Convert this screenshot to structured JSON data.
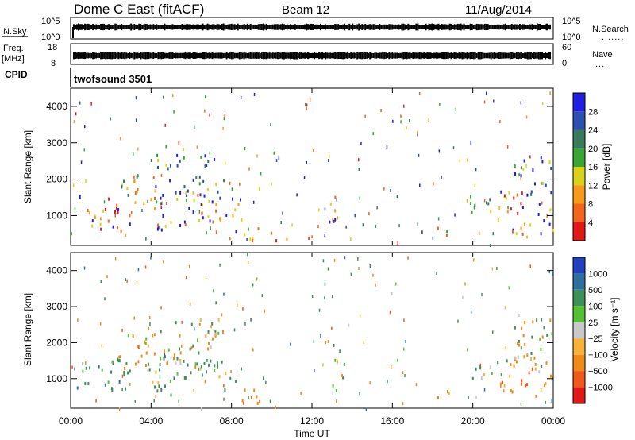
{
  "header": {
    "radar": "Dome C East (fitACF)",
    "beam": "Beam 12",
    "date": "11/Aug/2014"
  },
  "status_panels": {
    "nsky": {
      "label": "N.Sky",
      "ticks": [
        "10^5",
        "10^0"
      ]
    },
    "nsearch": {
      "label": "N.Search",
      "ticks": [
        "10^5",
        "10^0"
      ]
    },
    "freq": {
      "label_1": "Freq.",
      "label_2": "[MHz]",
      "ticks": [
        "18",
        "8"
      ]
    },
    "nave": {
      "label": "Nave",
      "ticks": [
        "60",
        "0"
      ]
    },
    "cpid": {
      "label": "CPID",
      "program": "twofsound 3501"
    }
  },
  "chart_data": [
    {
      "type": "heatmap",
      "name": "power",
      "ylabel": "Slant Range [km]",
      "xlabel": "Time UT",
      "x_ticks": [
        "00:00",
        "04:00",
        "08:00",
        "12:00",
        "16:00",
        "20:00",
        "00:00"
      ],
      "y_ticks": [
        1000,
        2000,
        3000,
        4000
      ],
      "xlim_hours": [
        0,
        24
      ],
      "ylim_km": [
        180,
        4500
      ],
      "colorbar": {
        "label": "Power [dB]",
        "ticks": [
          "28",
          "24",
          "20",
          "16",
          "12",
          "8",
          "4"
        ],
        "levels": [
          {
            "min": 0,
            "max": 4,
            "color": "#1f1fe0"
          },
          {
            "min": 4,
            "max": 8,
            "color": "#2c4fb0"
          },
          {
            "min": 8,
            "max": 12,
            "color": "#3a7a5c"
          },
          {
            "min": 12,
            "max": 16,
            "color": "#39a534"
          },
          {
            "min": 16,
            "max": 20,
            "color": "#d8d21a"
          },
          {
            "min": 20,
            "max": 24,
            "color": "#f59a1c"
          },
          {
            "min": 24,
            "max": 28,
            "color": "#f2661c"
          },
          {
            "min": 28,
            "max": 32,
            "color": "#e01818"
          }
        ]
      },
      "scatter_regions": [
        {
          "t0": 0.3,
          "t1": 3.0,
          "r0": 600,
          "r1": 1650,
          "val": 26
        },
        {
          "t0": 2.4,
          "t1": 4.4,
          "r0": 1300,
          "r1": 2300,
          "val": 18
        },
        {
          "t0": 3.8,
          "t1": 8.6,
          "r0": 550,
          "r1": 1600,
          "val": 27
        },
        {
          "t0": 4.2,
          "t1": 7.6,
          "r0": 1300,
          "r1": 2700,
          "val": 10
        },
        {
          "t0": 8.5,
          "t1": 10.8,
          "r0": 350,
          "r1": 750,
          "val": 24
        },
        {
          "t0": 12.8,
          "t1": 13.6,
          "r0": 650,
          "r1": 1850,
          "val": 26
        },
        {
          "t0": 18.0,
          "t1": 18.9,
          "r0": 350,
          "r1": 750,
          "val": 17
        },
        {
          "t0": 19.5,
          "t1": 21.8,
          "r0": 1000,
          "r1": 1600,
          "val": 18
        },
        {
          "t0": 21.2,
          "t1": 24.0,
          "r0": 500,
          "r1": 1700,
          "val": 27
        },
        {
          "t0": 22.0,
          "t1": 24.0,
          "r0": 1500,
          "r1": 2700,
          "val": 10
        }
      ]
    },
    {
      "type": "heatmap",
      "name": "velocity",
      "ylabel": "Slant Range [km]",
      "xlabel": "Time UT",
      "x_ticks": [
        "00:00",
        "04:00",
        "08:00",
        "12:00",
        "16:00",
        "20:00",
        "00:00"
      ],
      "y_ticks": [
        1000,
        2000,
        3000,
        4000
      ],
      "xlim_hours": [
        0,
        24
      ],
      "ylim_km": [
        180,
        4500
      ],
      "colorbar": {
        "label": "Velocity [m s⁻¹]",
        "ticks": [
          "1000",
          "500",
          "100",
          "25",
          "−25",
          "−100",
          "−500",
          "−1000"
        ],
        "levels": [
          {
            "min": 1000,
            "max": 1500,
            "color": "#2040c0"
          },
          {
            "min": 500,
            "max": 1000,
            "color": "#2f6fa0"
          },
          {
            "min": 100,
            "max": 500,
            "color": "#3f8f5a"
          },
          {
            "min": 25,
            "max": 100,
            "color": "#55c030"
          },
          {
            "min": -25,
            "max": 25,
            "color": "#c8c8c8"
          },
          {
            "min": -100,
            "max": -25,
            "color": "#f6b23a"
          },
          {
            "min": -500,
            "max": -100,
            "color": "#f28a1a"
          },
          {
            "min": -1000,
            "max": -500,
            "color": "#ee5a1a"
          },
          {
            "min": -1500,
            "max": -1000,
            "color": "#e01818"
          }
        ]
      },
      "scatter_regions": [
        {
          "t0": 0.3,
          "t1": 3.0,
          "r0": 600,
          "r1": 1650,
          "val": 300
        },
        {
          "t0": 2.4,
          "t1": 4.4,
          "r0": 1300,
          "r1": 2300,
          "val": -200
        },
        {
          "t0": 3.8,
          "t1": 8.6,
          "r0": 550,
          "r1": 1600,
          "val": 200
        },
        {
          "t0": 4.2,
          "t1": 7.6,
          "r0": 1300,
          "r1": 2700,
          "val": 0
        },
        {
          "t0": 8.5,
          "t1": 10.8,
          "r0": 350,
          "r1": 750,
          "val": -300
        },
        {
          "t0": 12.8,
          "t1": 13.6,
          "r0": 650,
          "r1": 1850,
          "val": 150
        },
        {
          "t0": 18.0,
          "t1": 18.9,
          "r0": 350,
          "r1": 750,
          "val": -300
        },
        {
          "t0": 19.5,
          "t1": 21.8,
          "r0": 1000,
          "r1": 1600,
          "val": 200
        },
        {
          "t0": 21.2,
          "t1": 24.0,
          "r0": 500,
          "r1": 1700,
          "val": -300
        },
        {
          "t0": 22.0,
          "t1": 24.0,
          "r0": 1500,
          "r1": 2700,
          "val": 0
        }
      ]
    }
  ]
}
